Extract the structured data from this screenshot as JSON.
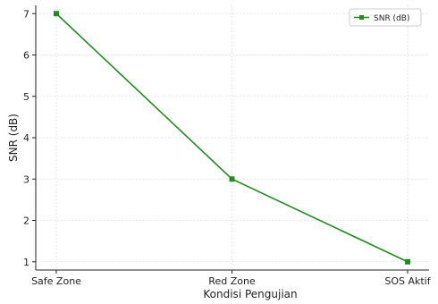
{
  "chart_data": {
    "type": "line",
    "categories": [
      "Safe Zone",
      "Red Zone",
      "SOS Aktif"
    ],
    "series": [
      {
        "name": "SNR (dB)",
        "values": [
          7,
          3,
          1
        ],
        "color": "#228b22",
        "marker": "square"
      }
    ],
    "title": "",
    "xlabel": "Kondisi Pengujian",
    "ylabel": "SNR (dB)",
    "ylim": [
      0.8,
      7.2
    ],
    "yticks": [
      1,
      2,
      3,
      4,
      5,
      6,
      7
    ],
    "grid": true,
    "legend_position": "top-right"
  }
}
